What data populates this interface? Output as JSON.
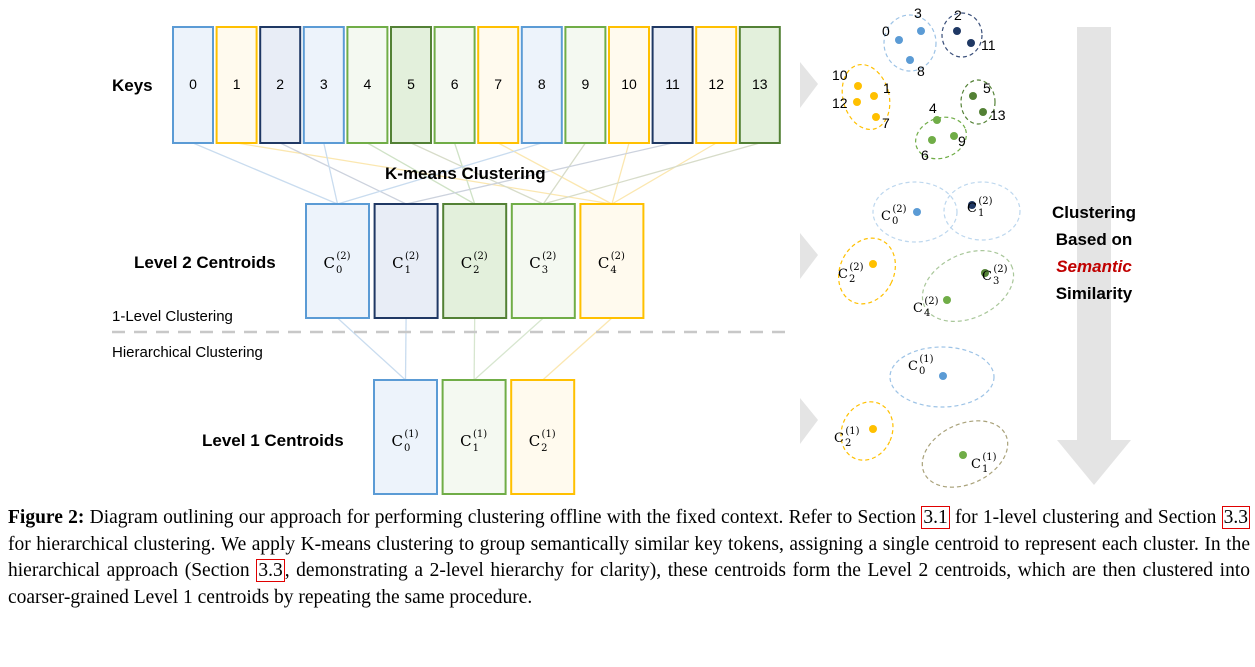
{
  "labels": {
    "keys": "Keys",
    "kmeans": "K-means Clustering",
    "level2": "Level 2 Centroids",
    "level1": "Level 1 Centroids",
    "one_level": "1-Level Clustering",
    "hierarchical": "Hierarchical Clustering",
    "right_line1": "Clustering",
    "right_line2": "Based on",
    "right_line3": "Semantic",
    "right_line4": "Similarity"
  },
  "keys": [
    "0",
    "1",
    "2",
    "3",
    "4",
    "5",
    "6",
    "7",
    "8",
    "9",
    "10",
    "11",
    "12",
    "13"
  ],
  "centroid_symbol": "C",
  "level2_centroids": [
    {
      "sub": "0",
      "sup": "(2)"
    },
    {
      "sub": "1",
      "sup": "(2)"
    },
    {
      "sub": "2",
      "sup": "(2)"
    },
    {
      "sub": "3",
      "sup": "(2)"
    },
    {
      "sub": "4",
      "sup": "(2)"
    }
  ],
  "level1_centroids": [
    {
      "sub": "0",
      "sup": "(1)"
    },
    {
      "sub": "1",
      "sup": "(1)"
    },
    {
      "sub": "2",
      "sup": "(1)"
    }
  ],
  "scatter_key_labels": [
    "0",
    "3",
    "8",
    "2",
    "11",
    "10",
    "1",
    "12",
    "7",
    "5",
    "13",
    "4",
    "6",
    "9"
  ],
  "colors": {
    "blue": "#5b9bd5",
    "navy": "#1f3864",
    "green": "#70ad47",
    "darkgreen": "#538135",
    "yellow": "#ffc000",
    "arrow_gray": "#e0e0e0"
  },
  "caption": {
    "figure": "Figure 2:",
    "part1": " Diagram outlining our approach for performing clustering offline with the fixed context. Refer to Section ",
    "ref1": "3.1",
    "part2": " for 1-level clustering and Section ",
    "ref2": "3.3",
    "part3": " for hierarchical clustering. We apply K-means clustering to group semantically similar key tokens, assigning a single centroid to represent each cluster. In the hierarchical approach (Section ",
    "ref3": "3.3",
    "part4": ", demonstrating a 2-level hierarchy for clarity), these centroids form the Level 2 centroids, which are then clustered into coarser-grained Level 1 centroids by repeating the same procedure."
  }
}
